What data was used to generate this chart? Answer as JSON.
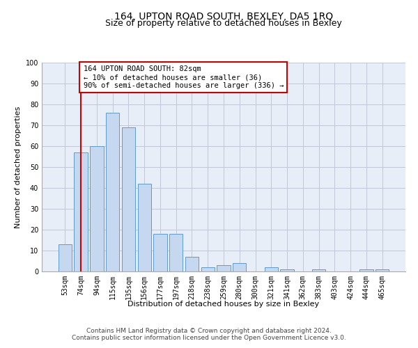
{
  "title": "164, UPTON ROAD SOUTH, BEXLEY, DA5 1RQ",
  "subtitle": "Size of property relative to detached houses in Bexley",
  "xlabel": "Distribution of detached houses by size in Bexley",
  "ylabel": "Number of detached properties",
  "categories": [
    "53sqm",
    "74sqm",
    "94sqm",
    "115sqm",
    "135sqm",
    "156sqm",
    "177sqm",
    "197sqm",
    "218sqm",
    "238sqm",
    "259sqm",
    "280sqm",
    "300sqm",
    "321sqm",
    "341sqm",
    "362sqm",
    "383sqm",
    "403sqm",
    "424sqm",
    "444sqm",
    "465sqm"
  ],
  "values": [
    13,
    57,
    60,
    76,
    69,
    42,
    18,
    18,
    7,
    2,
    3,
    4,
    0,
    2,
    1,
    0,
    1,
    0,
    0,
    1,
    1
  ],
  "bar_color": "#c5d8f0",
  "bar_edge_color": "#5b9bd5",
  "vline_x_index": 1,
  "vline_color": "#cc0000",
  "annotation_text": "164 UPTON ROAD SOUTH: 82sqm\n← 10% of detached houses are smaller (36)\n90% of semi-detached houses are larger (336) →",
  "annotation_box_color": "#ffffff",
  "annotation_box_edge": "#cc0000",
  "ylim": [
    0,
    100
  ],
  "yticks": [
    0,
    10,
    20,
    30,
    40,
    50,
    60,
    70,
    80,
    90,
    100
  ],
  "grid_color": "#c0c8d8",
  "background_color": "#e8eef8",
  "footer": "Contains HM Land Registry data © Crown copyright and database right 2024.\nContains public sector information licensed under the Open Government Licence v3.0.",
  "title_fontsize": 10,
  "subtitle_fontsize": 9,
  "xlabel_fontsize": 8,
  "ylabel_fontsize": 8,
  "tick_fontsize": 7,
  "annotation_fontsize": 7.5,
  "footer_fontsize": 6.5
}
